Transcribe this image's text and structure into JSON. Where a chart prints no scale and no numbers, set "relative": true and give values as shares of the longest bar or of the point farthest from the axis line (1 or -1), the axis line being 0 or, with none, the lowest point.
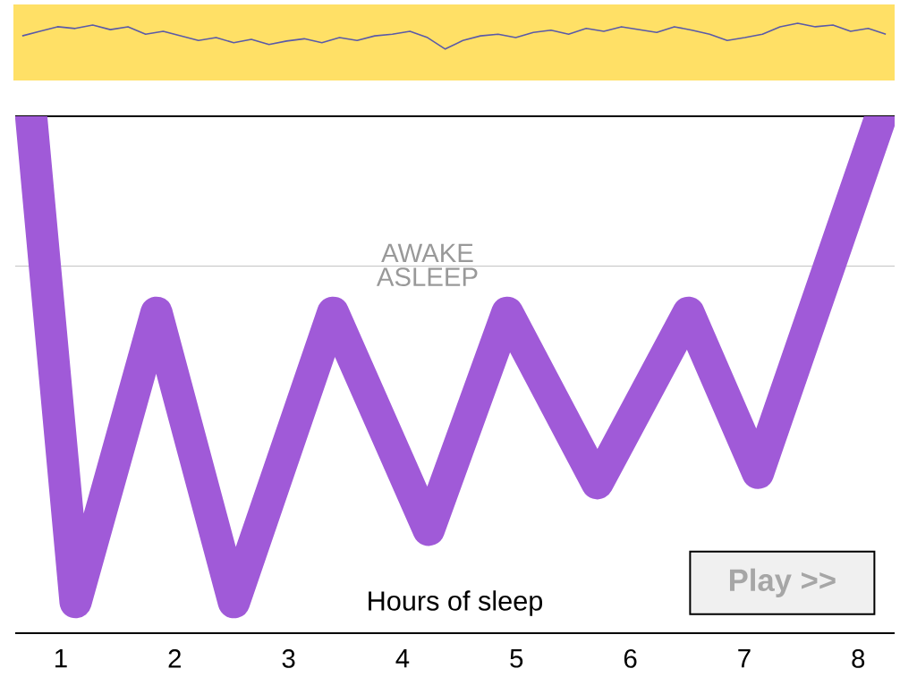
{
  "chart_data": [
    {
      "type": "line",
      "relative": true,
      "tick_labels": false,
      "categories": [
        null,
        null,
        null,
        null,
        null,
        null,
        null,
        null,
        null,
        null,
        null,
        null,
        null,
        null,
        null,
        null,
        null,
        null,
        null,
        null,
        null,
        null,
        null,
        null,
        null,
        null,
        null,
        null,
        null,
        null,
        null,
        null,
        null,
        null,
        null,
        null,
        null,
        null,
        null,
        null,
        null,
        null,
        null,
        null,
        null,
        null,
        null,
        null,
        null,
        null
      ],
      "series": [
        {
          "color": "#5a5aa8",
          "values": [
            0.78,
            0.86,
            0.94,
            0.91,
            0.97,
            0.89,
            0.94,
            0.81,
            0.86,
            0.78,
            0.7,
            0.75,
            0.66,
            0.72,
            0.63,
            0.69,
            0.73,
            0.66,
            0.75,
            0.7,
            0.78,
            0.81,
            0.86,
            0.75,
            0.55,
            0.7,
            0.78,
            0.81,
            0.75,
            0.84,
            0.88,
            0.81,
            0.91,
            0.86,
            0.94,
            0.89,
            0.84,
            0.94,
            0.88,
            0.81,
            0.7,
            0.75,
            0.81,
            0.94,
            1,
            0.94,
            0.97,
            0.86,
            0.91,
            0.81
          ]
        }
      ]
    },
    {
      "type": "line",
      "relative": true,
      "tick_labels": "x",
      "xlabel": "Hours of sleep",
      "x": [
        0.74,
        1.13,
        1.84,
        2.52,
        3.39,
        4.23,
        4.92,
        5.71,
        6.51,
        7.12,
        8.2
      ],
      "xlim": [
        0.6,
        8.32
      ],
      "xticks": [
        1,
        2,
        3,
        4,
        5,
        6,
        7,
        8
      ],
      "series": [
        {
          "color": "#a05ad8",
          "values": [
            1,
            0.06,
            0.62,
            0.06,
            0.62,
            0.2,
            0.62,
            0.29,
            0.62,
            0.31,
            1
          ]
        }
      ],
      "ref_lines": [
        {
          "axis": "y",
          "value": 0.71,
          "label": "AWAKE",
          "color": "#c8c8c8"
        }
      ],
      "annotations": [
        "ASLEEP",
        "Play >>"
      ]
    }
  ]
}
